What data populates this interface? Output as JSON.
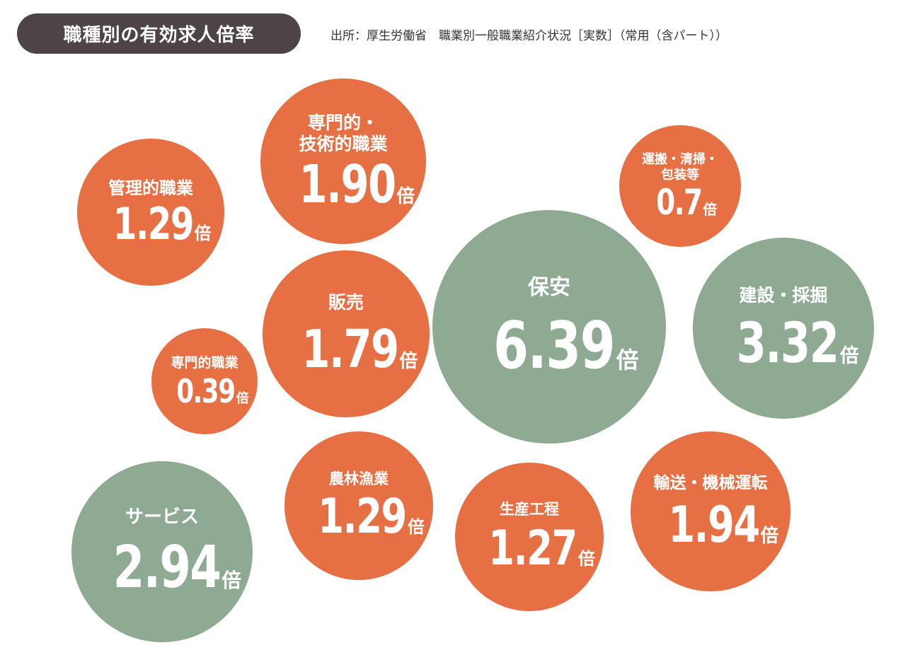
{
  "header": {
    "title": "職種別の有効求人倍率",
    "source": "出所：厚生労働省　職業別一般職業紹介状況［実数］（常用（含パート））"
  },
  "colors": {
    "orange": "#e66f43",
    "green": "#8eaa93",
    "title_bg": "#4d4449"
  },
  "chart_data": {
    "type": "bubble",
    "unit": "倍",
    "items": [
      {
        "label": "管理的職業",
        "value": "1.29",
        "color": "orange"
      },
      {
        "label": "専門的・\n技術的職業",
        "value": "1.90",
        "color": "orange"
      },
      {
        "label": "運搬・清掃・\n包装等",
        "value": "0.7",
        "color": "orange"
      },
      {
        "label": "販売",
        "value": "1.79",
        "color": "orange"
      },
      {
        "label": "保安",
        "value": "6.39",
        "color": "green"
      },
      {
        "label": "建設・採掘",
        "value": "3.32",
        "color": "green"
      },
      {
        "label": "専門的職業",
        "value": "0.39",
        "color": "orange"
      },
      {
        "label": "サービス",
        "value": "2.94",
        "color": "green"
      },
      {
        "label": "農林漁業",
        "value": "1.29",
        "color": "orange"
      },
      {
        "label": "生産工程",
        "value": "1.27",
        "color": "orange"
      },
      {
        "label": "輸送・機械運転",
        "value": "1.94",
        "color": "orange"
      }
    ]
  }
}
